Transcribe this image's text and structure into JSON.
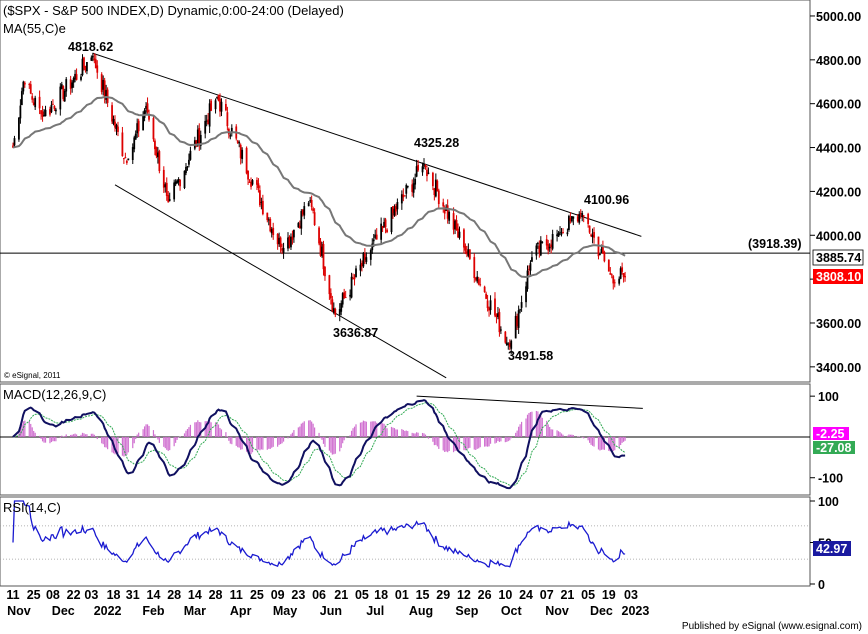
{
  "chart_data": {
    "type": "candlestick",
    "title": "($SPX - S&P 500 INDEX,D) Dynamic,0:00-24:00 (Delayed)",
    "overlay_label": "MA(55,C)e",
    "copyright": "© eSignal, 2011",
    "price_axis": {
      "ticks": [
        "5000.00",
        "4800.00",
        "4600.00",
        "4400.00",
        "4200.00",
        "4000.00",
        "3800.00",
        "3600.00",
        "3400.00"
      ],
      "ylim": [
        3340,
        5050
      ]
    },
    "annotations": [
      "4818.62",
      "4325.28",
      "4100.96",
      "3636.87",
      "3491.58",
      "(3918.39)"
    ],
    "horizontal_level": 3918.39,
    "last_ma": {
      "label": "3885.74",
      "value": 3885.74
    },
    "last_price": {
      "label": "3808.10",
      "value": 3808.1,
      "color": "#ff0000"
    },
    "anchors": [
      {
        "date": "2021-11-11",
        "close": 4400
      },
      {
        "date": "2021-11-18",
        "close": 4700
      },
      {
        "date": "2021-12-01",
        "close": 4540
      },
      {
        "date": "2022-01-04",
        "close": 4818.62
      },
      {
        "date": "2022-01-27",
        "close": 4330
      },
      {
        "date": "2022-02-09",
        "close": 4590
      },
      {
        "date": "2022-02-24",
        "close": 4150
      },
      {
        "date": "2022-03-29",
        "close": 4630
      },
      {
        "date": "2022-05-12",
        "close": 3930
      },
      {
        "date": "2022-05-31",
        "close": 4160
      },
      {
        "date": "2022-06-17",
        "close": 3636.87
      },
      {
        "date": "2022-07-08",
        "close": 3900
      },
      {
        "date": "2022-08-16",
        "close": 4325.28
      },
      {
        "date": "2022-09-13",
        "close": 3930
      },
      {
        "date": "2022-10-13",
        "close": 3491.58
      },
      {
        "date": "2022-10-28",
        "close": 3900
      },
      {
        "date": "2022-11-15",
        "close": 4010
      },
      {
        "date": "2022-12-01",
        "close": 4100.96
      },
      {
        "date": "2022-12-20",
        "close": 3820
      },
      {
        "date": "2022-12-30",
        "close": 3808.1
      }
    ],
    "macd": {
      "label": "MACD(12,26,9,C)",
      "ticks": [
        "100",
        "-100"
      ],
      "ylim": [
        -135,
        120
      ],
      "last_hist": {
        "label": "-2.25",
        "value": -2.25,
        "color": "#ff00ff"
      },
      "last_signal": {
        "label": "-27.08",
        "value": -27.08,
        "color": "#33aa55"
      }
    },
    "rsi": {
      "label": "RSI(14,C)",
      "ticks": [
        "100",
        "50",
        "0"
      ],
      "ylim": [
        0,
        100
      ],
      "last": {
        "label": "42.97",
        "value": 42.97
      }
    },
    "x_axis": {
      "day_labels": [
        {
          "t": "11",
          "date": "2021-11-11"
        },
        {
          "t": "25",
          "date": "2021-11-25"
        },
        {
          "t": "08",
          "date": "2021-12-08"
        },
        {
          "t": "22",
          "date": "2021-12-22"
        },
        {
          "t": "03",
          "date": "2022-01-03"
        },
        {
          "t": "18",
          "date": "2022-01-18"
        },
        {
          "t": "31",
          "date": "2022-01-31"
        },
        {
          "t": "14",
          "date": "2022-02-14"
        },
        {
          "t": "28",
          "date": "2022-02-28"
        },
        {
          "t": "14",
          "date": "2022-03-14"
        },
        {
          "t": "28",
          "date": "2022-03-28"
        },
        {
          "t": "11",
          "date": "2022-04-11"
        },
        {
          "t": "25",
          "date": "2022-04-25"
        },
        {
          "t": "09",
          "date": "2022-05-09"
        },
        {
          "t": "23",
          "date": "2022-05-23"
        },
        {
          "t": "06",
          "date": "2022-06-06"
        },
        {
          "t": "21",
          "date": "2022-06-21"
        },
        {
          "t": "05",
          "date": "2022-07-05"
        },
        {
          "t": "18",
          "date": "2022-07-18"
        },
        {
          "t": "01",
          "date": "2022-08-01"
        },
        {
          "t": "15",
          "date": "2022-08-15"
        },
        {
          "t": "29",
          "date": "2022-08-29"
        },
        {
          "t": "12",
          "date": "2022-09-12"
        },
        {
          "t": "26",
          "date": "2022-09-26"
        },
        {
          "t": "10",
          "date": "2022-10-10"
        },
        {
          "t": "24",
          "date": "2022-10-24"
        },
        {
          "t": "07",
          "date": "2022-11-07"
        },
        {
          "t": "21",
          "date": "2022-11-21"
        },
        {
          "t": "05",
          "date": "2022-12-05"
        },
        {
          "t": "19",
          "date": "2022-12-19"
        },
        {
          "t": "03",
          "date": "2023-01-03"
        }
      ],
      "month_labels": [
        {
          "t": "Nov",
          "date": "2021-11-15"
        },
        {
          "t": "Dec",
          "date": "2021-12-15"
        },
        {
          "t": "2022",
          "date": "2022-01-14"
        },
        {
          "t": "Feb",
          "date": "2022-02-14"
        },
        {
          "t": "Mar",
          "date": "2022-03-14"
        },
        {
          "t": "Apr",
          "date": "2022-04-14"
        },
        {
          "t": "May",
          "date": "2022-05-14"
        },
        {
          "t": "Jun",
          "date": "2022-06-14"
        },
        {
          "t": "Jul",
          "date": "2022-07-14"
        },
        {
          "t": "Aug",
          "date": "2022-08-14"
        },
        {
          "t": "Sep",
          "date": "2022-09-14"
        },
        {
          "t": "Oct",
          "date": "2022-10-14"
        },
        {
          "t": "Nov",
          "date": "2022-11-14"
        },
        {
          "t": "Dec",
          "date": "2022-12-14"
        },
        {
          "t": "2023",
          "date": "2023-01-06"
        }
      ]
    },
    "trendlines": [
      {
        "from": {
          "date": "2022-01-04",
          "price": 4830
        },
        "to": {
          "date": "2023-01-10",
          "price": 3995
        }
      },
      {
        "from": {
          "date": "2022-01-19",
          "price": 4230
        },
        "to": {
          "date": "2022-08-31",
          "price": 3350
        }
      },
      {
        "pane": "macd",
        "from": {
          "date": "2022-08-11",
          "value": 100
        },
        "to": {
          "date": "2023-01-11",
          "value": 70
        }
      }
    ]
  },
  "footer": "Published by eSignal (www.esignal.com)"
}
